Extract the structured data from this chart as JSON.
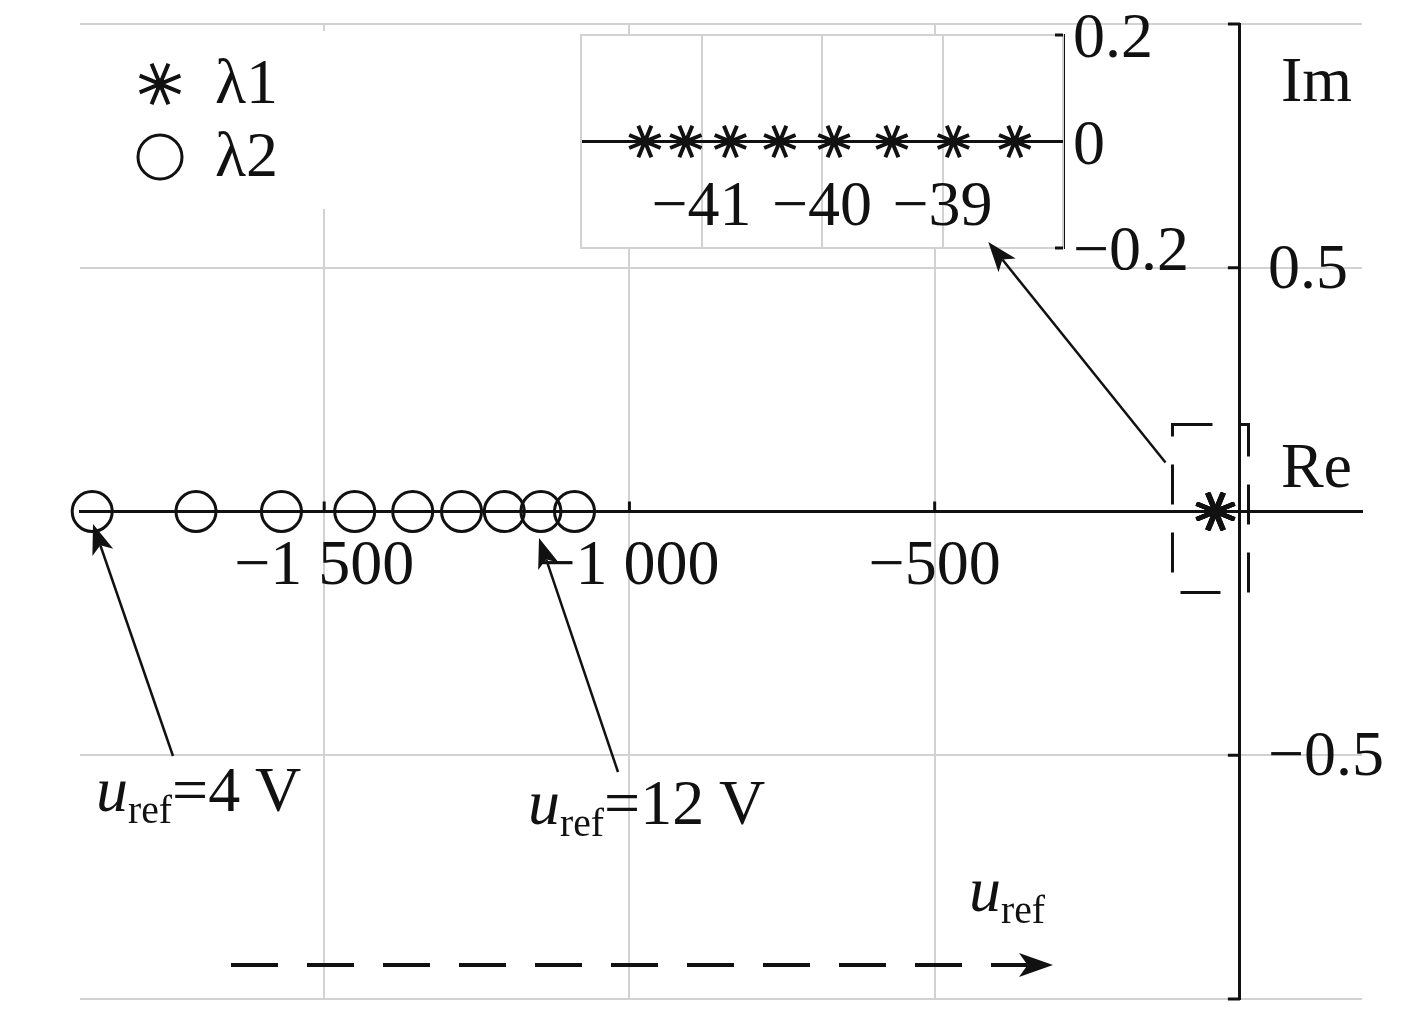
{
  "chart_data": [
    {
      "type": "scatter",
      "xlabel": "Re",
      "ylabel": "Im",
      "series": [
        {
          "name": "λ1",
          "color": "#111111",
          "marker": "cross",
          "x": [
            -41.47,
            -41.13,
            -40.76,
            -40.35,
            -39.9,
            -39.42,
            -38.91,
            -38.4
          ],
          "values": [
            0,
            0,
            0,
            0,
            0,
            0,
            0,
            0
          ]
        },
        {
          "name": "λ2",
          "color": "#111111",
          "marker": "circle",
          "x": [
            -1880,
            -1710,
            -1570,
            -1450,
            -1355,
            -1275,
            -1205,
            -1145,
            -1090
          ],
          "values": [
            0,
            0,
            0,
            0,
            0,
            0,
            0,
            0,
            0
          ]
        }
      ],
      "xlim": [
        -1900,
        200
      ],
      "xticks": [
        {
          "value": -1500,
          "label": "−1 500"
        },
        {
          "value": -1000,
          "label": "−1 000"
        },
        {
          "value": -500,
          "label": "−500"
        }
      ],
      "ylim": [
        -1,
        1
      ],
      "yticks": [
        {
          "value": 1,
          "label": null
        },
        0.5,
        {
          "value": -0.5,
          "label": "−0.5"
        },
        {
          "value": -1,
          "label": null
        }
      ],
      "grid": true,
      "legend": "top left",
      "annotations": [
        "u$_{ref}$=4 V",
        "u$_{ref}$=12 V",
        "u$_{ref}$"
      ]
    },
    {
      "type": "scatter",
      "series": [
        {
          "color": "#111111",
          "marker": "cross",
          "x": [
            -41.47,
            -41.13,
            -40.76,
            -40.35,
            -39.9,
            -39.42,
            -38.91,
            -38.4
          ],
          "values": [
            0,
            0,
            0,
            0,
            0,
            0,
            0,
            0
          ]
        }
      ],
      "xlim": [
        -42,
        -38
      ],
      "xticks": [
        {
          "value": -41,
          "label": "−41"
        },
        {
          "value": -40,
          "label": "−40"
        },
        {
          "value": -39,
          "label": "−39"
        }
      ],
      "ylim": [
        -0.2,
        0.2
      ],
      "yticks": [
        0.2,
        0,
        {
          "value": -0.2,
          "label": "−0.2"
        }
      ],
      "grid": true
    }
  ]
}
